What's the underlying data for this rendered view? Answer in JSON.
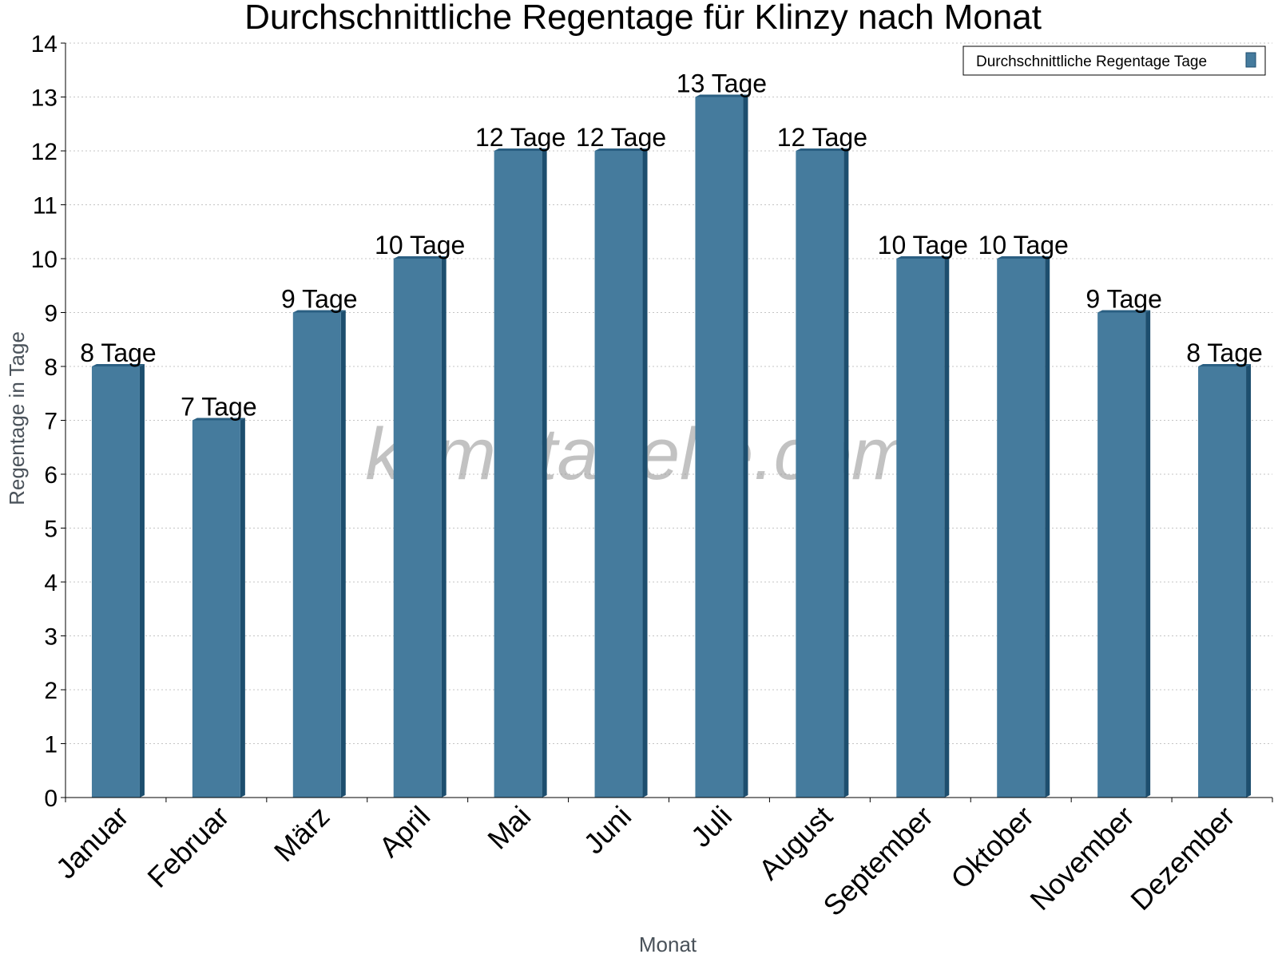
{
  "chart_data": {
    "type": "bar",
    "title": "Durchschnittliche Regentage für Klinzy nach Monat",
    "xlabel": "Monat",
    "ylabel": "Regentage in Tage",
    "ylim": [
      0,
      14
    ],
    "yticks": [
      "0",
      "1",
      "2",
      "3",
      "4",
      "5",
      "6",
      "7",
      "8",
      "9",
      "10",
      "11",
      "12",
      "13",
      "14"
    ],
    "grid": true,
    "legend_position": "top-right",
    "categories": [
      "Januar",
      "Februar",
      "März",
      "April",
      "Mai",
      "Juni",
      "Juli",
      "August",
      "September",
      "Oktober",
      "November",
      "Dezember"
    ],
    "series": [
      {
        "name": "Durchschnittliche Regentage Tage",
        "values": [
          8,
          7,
          9,
          10,
          12,
          12,
          13,
          12,
          10,
          10,
          9,
          8
        ],
        "labels": [
          "8 Tage",
          "7 Tage",
          "9 Tage",
          "10 Tage",
          "12 Tage",
          "12 Tage",
          "13 Tage",
          "12 Tage",
          "10 Tage",
          "10 Tage",
          "9 Tage",
          "8 Tage"
        ],
        "color": "#457b9d",
        "side_color": "#1d4e6e",
        "top_color": "#2a5f82"
      }
    ],
    "watermark": "klimatabelle.com"
  }
}
